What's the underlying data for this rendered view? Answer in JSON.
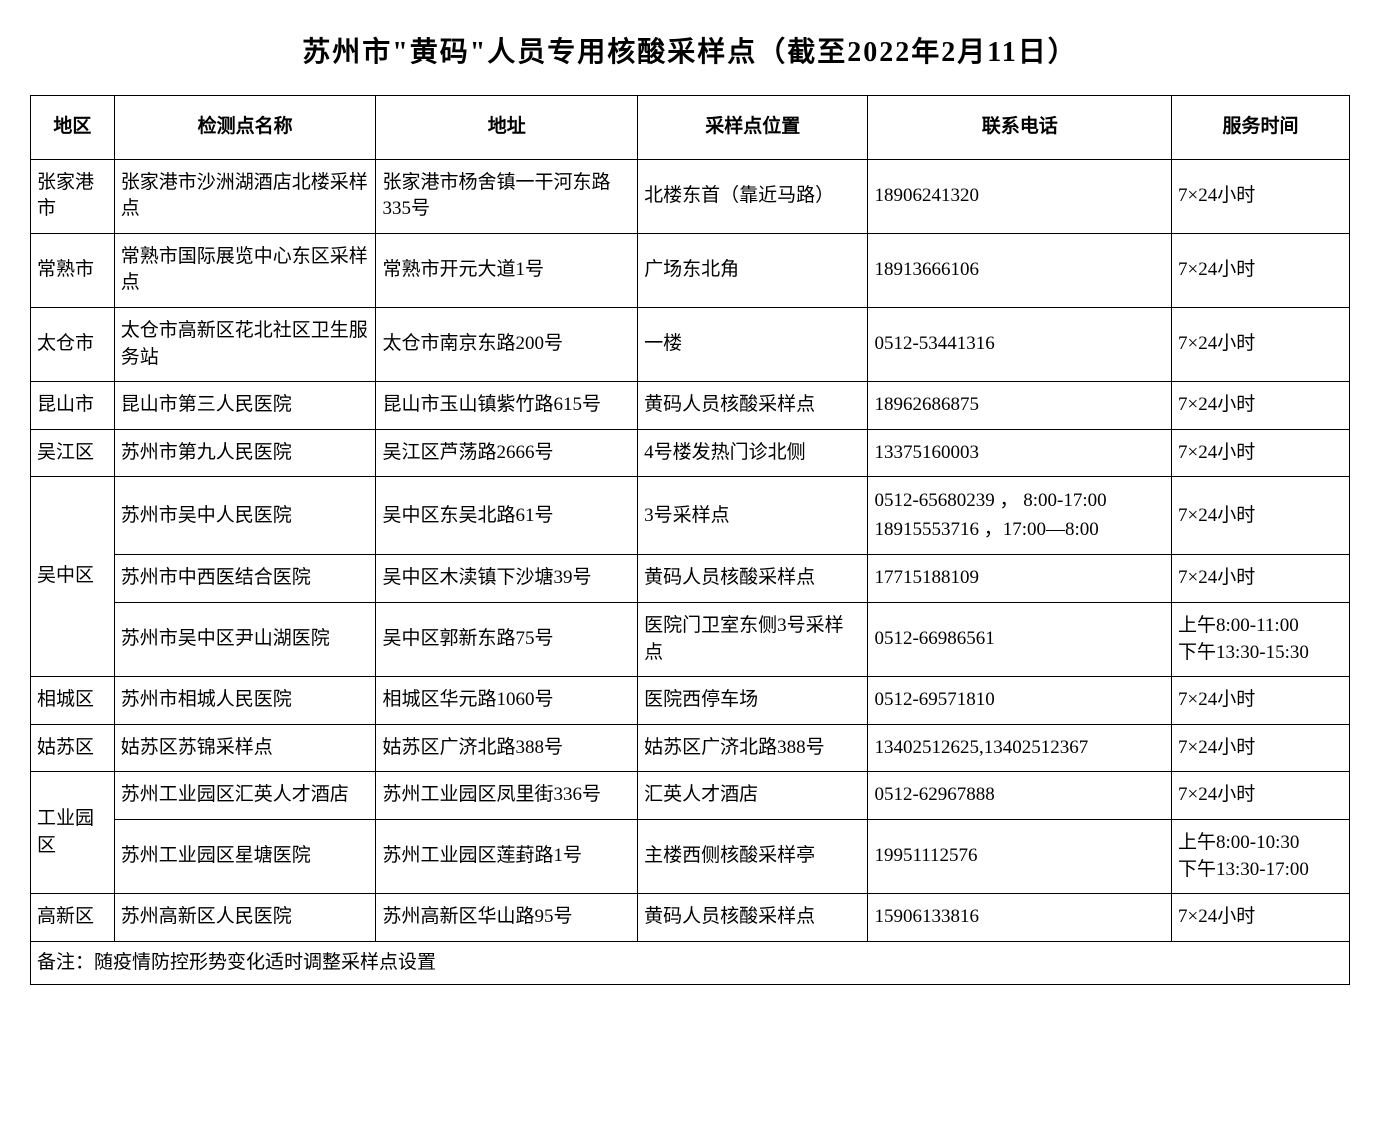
{
  "title": "苏州市\"黄码\"人员专用核酸采样点（截至2022年2月11日）",
  "columns": {
    "region": "地区",
    "name": "检测点名称",
    "address": "地址",
    "location": "采样点位置",
    "phone": "联系电话",
    "time": "服务时间"
  },
  "groups": [
    {
      "region": "张家港市",
      "rows": [
        {
          "name": "张家港市沙洲湖酒店北楼采样点",
          "address": "张家港市杨舍镇一干河东路335号",
          "location": "北楼东首（靠近马路）",
          "phone": "18906241320",
          "time": "7×24小时"
        }
      ]
    },
    {
      "region": "常熟市",
      "rows": [
        {
          "name": "常熟市国际展览中心东区采样点",
          "address": "常熟市开元大道1号",
          "location": "广场东北角",
          "phone": "18913666106",
          "time": "7×24小时"
        }
      ]
    },
    {
      "region": "太仓市",
      "rows": [
        {
          "name": "太仓市高新区花北社区卫生服务站",
          "address": "太仓市南京东路200号",
          "location": "一楼",
          "phone": "0512-53441316",
          "time": "7×24小时"
        }
      ]
    },
    {
      "region": "昆山市",
      "rows": [
        {
          "name": "昆山市第三人民医院",
          "address": "昆山市玉山镇紫竹路615号",
          "location": "黄码人员核酸采样点",
          "phone": "18962686875",
          "time": "7×24小时"
        }
      ]
    },
    {
      "region": "吴江区",
      "rows": [
        {
          "name": "苏州市第九人民医院",
          "address": "吴江区芦荡路2666号",
          "location": "4号楼发热门诊北侧",
          "phone": "13375160003",
          "time": "7×24小时"
        }
      ]
    },
    {
      "region": "吴中区",
      "rows": [
        {
          "name": "苏州市吴中人民医院",
          "address": "吴中区东吴北路61号",
          "location": "3号采样点",
          "phone": "0512-65680239 ， 8:00-17:00\n18915553716 ，17:00—8:00",
          "time": "7×24小时"
        },
        {
          "name": "苏州市中西医结合医院",
          "address": "吴中区木渎镇下沙塘39号",
          "location": "黄码人员核酸采样点",
          "phone": "17715188109",
          "time": "7×24小时"
        },
        {
          "name": "苏州市吴中区尹山湖医院",
          "address": "吴中区郭新东路75号",
          "location": "医院门卫室东侧3号采样点",
          "phone": "0512-66986561",
          "time": "上午8:00-11:00\n下午13:30-15:30"
        }
      ]
    },
    {
      "region": "相城区",
      "rows": [
        {
          "name": "苏州市相城人民医院",
          "address": "相城区华元路1060号",
          "location": "医院西停车场",
          "phone": "0512-69571810",
          "time": "7×24小时"
        }
      ]
    },
    {
      "region": "姑苏区",
      "rows": [
        {
          "name": "姑苏区苏锦采样点",
          "address": "姑苏区广济北路388号",
          "location": "姑苏区广济北路388号",
          "phone": "13402512625,13402512367",
          "time": "7×24小时"
        }
      ]
    },
    {
      "region": "工业园区",
      "rows": [
        {
          "name": "苏州工业园区汇英人才酒店",
          "address": "苏州工业园区凤里街336号",
          "location": "汇英人才酒店",
          "phone": "0512-62967888",
          "time": "7×24小时"
        },
        {
          "name": "苏州工业园区星塘医院",
          "address": "苏州工业园区莲葑路1号",
          "location": "主楼西侧核酸采样亭",
          "phone": "19951112576",
          "time": "上午8:00-10:30\n下午13:30-17:00"
        }
      ]
    },
    {
      "region": "高新区",
      "rows": [
        {
          "name": "苏州高新区人民医院",
          "address": "苏州高新区华山路95号",
          "location": "黄码人员核酸采样点",
          "phone": "15906133816",
          "time": "7×24小时"
        }
      ]
    }
  ],
  "note": "备注：随疫情防控形势变化适时调整采样点设置",
  "colors": {
    "background": "#ffffff",
    "text": "#000000",
    "border": "#000000"
  }
}
